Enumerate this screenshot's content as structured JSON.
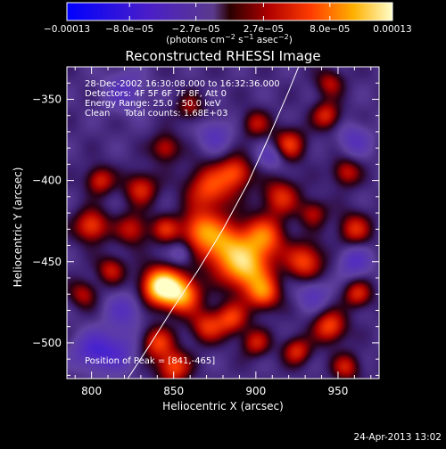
{
  "chart_data": {
    "type": "heatmap",
    "title": "Reconstructed RHESSI Image",
    "xlabel": "Heliocentric X (arcsec)",
    "ylabel": "Heliocentric Y (arcsec)",
    "xlim": [
      785,
      975
    ],
    "ylim": [
      -522,
      -330
    ],
    "x_ticks": [
      800,
      850,
      900,
      950
    ],
    "x_tick_labels": [
      "800",
      "850",
      "900",
      "950"
    ],
    "y_ticks": [
      -350,
      -400,
      -450,
      -500
    ],
    "y_tick_labels": [
      "−350",
      "−400",
      "−450",
      "−500"
    ],
    "colorbar": {
      "ticks": [
        -0.00013,
        -8e-05,
        -2.7e-05,
        2.7e-05,
        8e-05,
        0.00013
      ],
      "tick_labels": [
        "−0.00013",
        "−8.0e−05",
        "−2.7e−05",
        "2.7e−05",
        "8.0e−05",
        "0.00013"
      ],
      "range": [
        -0.00013,
        0.00013
      ],
      "units_prefix": "(photons cm",
      "units_exp1": "−2",
      "units_mid": " s",
      "units_exp2": "−1",
      "units_mid2": " asec",
      "units_exp3": "−2",
      "units_suffix": ")"
    },
    "info_lines": [
      "28-Dec-2002 16:30:08.000 to 16:32:36.000",
      "Detectors: 4F 5F 6F 7F 8F, Att 0",
      "Energy Range: 25.0 - 50.0 keV",
      "Clean     Total counts: 1.68E+03"
    ],
    "peak_text": "Position of Peak = [841,-465]",
    "peak_position": [
      841,
      -465
    ],
    "limb_curve_points": [
      [
        822,
        -522
      ],
      [
        835,
        -502
      ],
      [
        850,
        -478
      ],
      [
        865,
        -455
      ],
      [
        880,
        -430
      ],
      [
        895,
        -402
      ],
      [
        908,
        -373
      ],
      [
        920,
        -345
      ],
      [
        926,
        -330
      ]
    ],
    "blobs": [
      {
        "x": 842,
        "y": -465,
        "v": 1.0,
        "r": 8
      },
      {
        "x": 855,
        "y": -470,
        "v": 0.75,
        "r": 8
      },
      {
        "x": 880,
        "y": -440,
        "v": 0.7,
        "r": 11
      },
      {
        "x": 895,
        "y": -455,
        "v": 0.75,
        "r": 10
      },
      {
        "x": 905,
        "y": -435,
        "v": 0.6,
        "r": 9
      },
      {
        "x": 872,
        "y": -405,
        "v": 0.55,
        "r": 10
      },
      {
        "x": 888,
        "y": -395,
        "v": 0.5,
        "r": 7
      },
      {
        "x": 865,
        "y": -430,
        "v": 0.5,
        "r": 8
      },
      {
        "x": 915,
        "y": -410,
        "v": 0.45,
        "r": 8
      },
      {
        "x": 905,
        "y": -470,
        "v": 0.55,
        "r": 7
      },
      {
        "x": 930,
        "y": -450,
        "v": 0.55,
        "r": 8
      },
      {
        "x": 840,
        "y": -500,
        "v": 0.5,
        "r": 7
      },
      {
        "x": 850,
        "y": -515,
        "v": 0.55,
        "r": 7
      },
      {
        "x": 870,
        "y": -490,
        "v": 0.45,
        "r": 7
      },
      {
        "x": 885,
        "y": -485,
        "v": 0.5,
        "r": 7
      },
      {
        "x": 900,
        "y": -500,
        "v": 0.4,
        "r": 6
      },
      {
        "x": 800,
        "y": -428,
        "v": 0.55,
        "r": 7
      },
      {
        "x": 812,
        "y": -455,
        "v": 0.4,
        "r": 6
      },
      {
        "x": 795,
        "y": -470,
        "v": 0.35,
        "r": 6
      },
      {
        "x": 805,
        "y": -400,
        "v": 0.45,
        "r": 6
      },
      {
        "x": 830,
        "y": -405,
        "v": 0.45,
        "r": 7
      },
      {
        "x": 825,
        "y": -430,
        "v": 0.4,
        "r": 7
      },
      {
        "x": 845,
        "y": -380,
        "v": 0.4,
        "r": 6
      },
      {
        "x": 845,
        "y": -430,
        "v": 0.4,
        "r": 6
      },
      {
        "x": 920,
        "y": -378,
        "v": 0.5,
        "r": 7
      },
      {
        "x": 943,
        "y": -360,
        "v": 0.45,
        "r": 6
      },
      {
        "x": 955,
        "y": -395,
        "v": 0.4,
        "r": 6
      },
      {
        "x": 945,
        "y": -340,
        "v": 0.35,
        "r": 6
      },
      {
        "x": 960,
        "y": -430,
        "v": 0.45,
        "r": 7
      },
      {
        "x": 945,
        "y": -490,
        "v": 0.55,
        "r": 7
      },
      {
        "x": 962,
        "y": -470,
        "v": 0.45,
        "r": 6
      },
      {
        "x": 925,
        "y": -505,
        "v": 0.45,
        "r": 6
      },
      {
        "x": 955,
        "y": -515,
        "v": 0.4,
        "r": 6
      },
      {
        "x": 900,
        "y": -365,
        "v": 0.35,
        "r": 6
      },
      {
        "x": 860,
        "y": -355,
        "v": 0.3,
        "r": 6
      },
      {
        "x": 935,
        "y": -420,
        "v": 0.35,
        "r": 6
      },
      {
        "x": 815,
        "y": -505,
        "v": -0.35,
        "r": 9
      },
      {
        "x": 820,
        "y": -480,
        "v": -0.3,
        "r": 8
      },
      {
        "x": 800,
        "y": -505,
        "v": -0.4,
        "r": 8
      },
      {
        "x": 960,
        "y": -450,
        "v": -0.35,
        "r": 7
      },
      {
        "x": 935,
        "y": -470,
        "v": -0.3,
        "r": 7
      },
      {
        "x": 910,
        "y": -385,
        "v": -0.3,
        "r": 6
      },
      {
        "x": 820,
        "y": -345,
        "v": -0.3,
        "r": 9
      },
      {
        "x": 875,
        "y": -372,
        "v": -0.3,
        "r": 7
      },
      {
        "x": 855,
        "y": -445,
        "v": -0.25,
        "r": 5
      },
      {
        "x": 960,
        "y": -375,
        "v": -0.3,
        "r": 7
      }
    ]
  },
  "footer": {
    "date": "24-Apr-2013 13:02"
  },
  "colors": {
    "background": "#000000",
    "text": "#ffffff",
    "limb_line": "#ffffff"
  }
}
